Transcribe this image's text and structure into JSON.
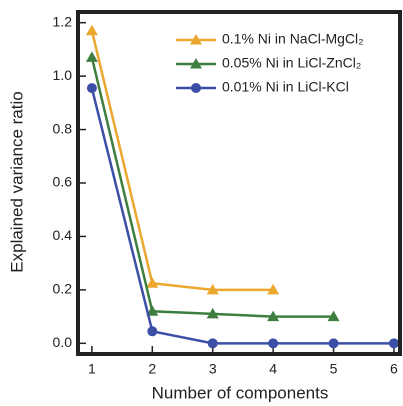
{
  "chart_data": {
    "type": "line",
    "x_label": "Number of components",
    "y_label": "Explained variance ratio",
    "x": [
      1,
      2,
      3,
      4,
      5,
      6
    ],
    "series": [
      {
        "name": "0.1% Ni in NaCl-MgCl₂",
        "color": "#eba72e",
        "marker": "triangle",
        "values": [
          1.17,
          0.225,
          0.2,
          0.2,
          null,
          null
        ]
      },
      {
        "name": "0.05% Ni in LiCl-ZnCl₂",
        "color": "#3e7e3e",
        "marker": "triangle",
        "values": [
          1.07,
          0.12,
          0.11,
          0.1,
          0.1,
          null
        ]
      },
      {
        "name": "0.01% Ni in LiCl-KCl",
        "color": "#3b4fa6",
        "marker": "circle",
        "values": [
          0.955,
          0.045,
          0.0,
          0.0,
          0.0,
          0.0
        ]
      }
    ],
    "xlim": [
      0.77,
      6.1
    ],
    "ylim": [
      -0.04,
      1.24
    ],
    "xticks": [
      1,
      2,
      3,
      4,
      5,
      6
    ],
    "yticks": [
      {
        "value": 0,
        "label": "0.0"
      },
      0.2,
      0.4,
      0.6,
      0.8,
      {
        "value": 1,
        "label": "1.0"
      },
      1.2
    ],
    "legend": "upper right"
  }
}
